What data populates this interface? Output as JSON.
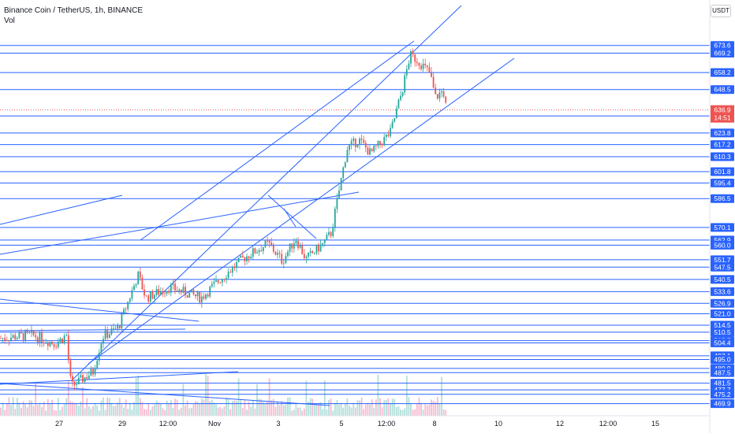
{
  "header": {
    "title": "Binance Coin / TetherUS, 1h, BINANCE",
    "indicator": "Vol",
    "currency": "USDT"
  },
  "colors": {
    "up": "#26a69a",
    "down": "#ef5350",
    "hline": "#2962ff",
    "trend": "#2962ff",
    "volume_up": "#b2dfdb",
    "volume_down": "#f8bbd0",
    "axis_text": "#131722",
    "price_label_bg": "#2962ff",
    "last_price_bg": "#ef5350"
  },
  "chart_data": {
    "type": "candlestick",
    "title": "Binance Coin / TetherUS, 1h, BINANCE",
    "ylim": [
      463,
      686
    ],
    "x_ticks": [
      "27",
      "29",
      "12:00",
      "Nov",
      "3",
      "5",
      "12:00",
      "8",
      "10",
      "12",
      "12:00",
      "15"
    ],
    "price_labels": [
      "673.6",
      "669.2",
      "658.2",
      "648.5",
      "633.5",
      "623.8",
      "617.2",
      "610.3",
      "601.8",
      "595.4",
      "586.5",
      "570.1",
      "562.9",
      "560.0",
      "551.7",
      "547.5",
      "540.5",
      "533.6",
      "526.9",
      "521.0",
      "514.5",
      "510.5",
      "505.7",
      "504.4",
      "497.1",
      "495.0",
      "489.9",
      "487.5",
      "481.5",
      "477.7",
      "475.2",
      "469.9"
    ],
    "last_price": "636.9",
    "countdown": "14:51",
    "path_points": [
      {
        "date": "Oct 26",
        "price": 507
      },
      {
        "date": "Oct 27",
        "price": 509
      },
      {
        "date": "Oct 27",
        "price": 504
      },
      {
        "date": "Oct 27",
        "price": 509
      },
      {
        "date": "Oct 27",
        "price": 485
      },
      {
        "date": "Oct 28",
        "price": 480
      },
      {
        "date": "Oct 28",
        "price": 488
      },
      {
        "date": "Oct 28",
        "price": 508
      },
      {
        "date": "Oct 29",
        "price": 513
      },
      {
        "date": "Oct 29",
        "price": 543
      },
      {
        "date": "Oct 30",
        "price": 530
      },
      {
        "date": "Oct 30",
        "price": 536
      },
      {
        "date": "Oct 31",
        "price": 530
      },
      {
        "date": "Oct 31",
        "price": 541
      },
      {
        "date": "Nov 1",
        "price": 553
      },
      {
        "date": "Nov 2",
        "price": 561
      },
      {
        "date": "Nov 3",
        "price": 551
      },
      {
        "date": "Nov 3",
        "price": 564
      },
      {
        "date": "Nov 4",
        "price": 552
      },
      {
        "date": "Nov 4",
        "price": 561
      },
      {
        "date": "Nov 5",
        "price": 567
      },
      {
        "date": "Nov 5",
        "price": 615
      },
      {
        "date": "Nov 6",
        "price": 620
      },
      {
        "date": "Nov 6",
        "price": 612
      },
      {
        "date": "Nov 7",
        "price": 624
      },
      {
        "date": "Nov 7",
        "price": 648
      },
      {
        "date": "Nov 7",
        "price": 668
      },
      {
        "date": "Nov 8",
        "price": 665
      },
      {
        "date": "Nov 8",
        "price": 658
      },
      {
        "date": "Nov 8",
        "price": 644
      },
      {
        "date": "Nov 8",
        "price": 648
      },
      {
        "date": "Nov 8",
        "price": 637
      }
    ]
  }
}
